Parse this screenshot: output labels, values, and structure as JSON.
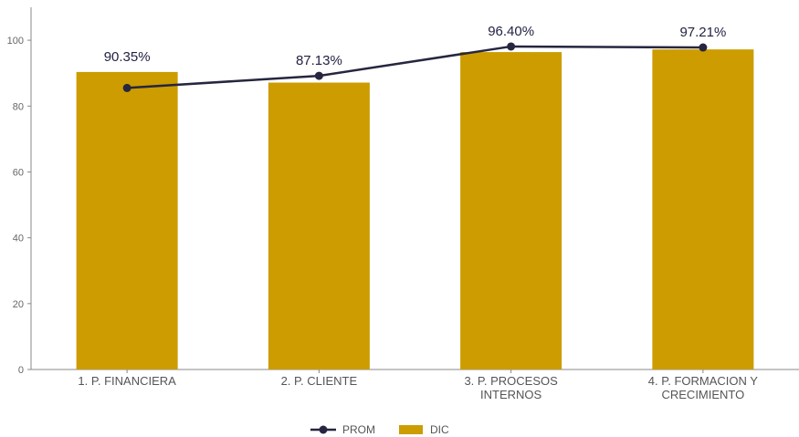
{
  "chart_data": {
    "type": "bar",
    "categories": [
      [
        "1. P. FINANCIERA"
      ],
      [
        "2. P. CLIENTE"
      ],
      [
        "3. P. PROCESOS",
        "INTERNOS"
      ],
      [
        "4. P. FORMACION Y",
        "CRECIMIENTO"
      ]
    ],
    "series": [
      {
        "name": "DIC",
        "type": "bar",
        "values": [
          90.35,
          87.13,
          96.4,
          97.21
        ],
        "color": "#cc9c00"
      },
      {
        "name": "PROM",
        "type": "line",
        "values": [
          85.5,
          89.2,
          98.1,
          97.8
        ],
        "color": "#262640"
      }
    ],
    "data_labels": [
      "90.35%",
      "87.13%",
      "96.40%",
      "97.21%"
    ],
    "yticks": [
      "0",
      "20",
      "40",
      "60",
      "80",
      "100"
    ],
    "ylim": [
      0,
      110
    ],
    "grid": false,
    "legend": {
      "position": "bottom-center",
      "items": [
        {
          "label": "PROM",
          "marker": "line",
          "color": "#262640"
        },
        {
          "label": "DIC",
          "marker": "bar",
          "color": "#cc9c00"
        }
      ]
    }
  }
}
